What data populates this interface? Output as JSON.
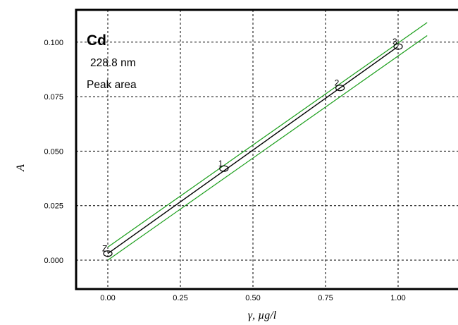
{
  "chart_data": {
    "type": "scatter",
    "xlabel": "γ, µg/l",
    "ylabel": "A",
    "xlim": [
      -0.1,
      1.15
    ],
    "ylim": [
      -0.013,
      0.115
    ],
    "x_ticks": [
      "0.00",
      "0.25",
      "0.50",
      "0.75",
      "1.00"
    ],
    "y_ticks": [
      "0.000",
      "0.025",
      "0.050",
      "0.075",
      "0.100"
    ],
    "grid": true,
    "annotations": {
      "element": "Cd",
      "wavelength": "228.8 nm",
      "mode": "Peak area"
    },
    "points": [
      {
        "label": "Z",
        "x": 0.0,
        "y": 0.003
      },
      {
        "label": "1",
        "x": 0.4,
        "y": 0.042
      },
      {
        "label": "2",
        "x": 0.8,
        "y": 0.079
      },
      {
        "label": "3",
        "x": 1.0,
        "y": 0.098
      }
    ],
    "fit_line": {
      "x": [
        0.0,
        1.0
      ],
      "y": [
        0.003,
        0.098
      ],
      "color": "#000000"
    },
    "confidence_band": {
      "upper": {
        "x": [
          0.0,
          1.1
        ],
        "y": [
          0.006,
          0.109
        ]
      },
      "lower": {
        "x": [
          0.0,
          1.1
        ],
        "y": [
          0.0,
          0.103
        ]
      },
      "color": "#1a9e1a"
    }
  }
}
